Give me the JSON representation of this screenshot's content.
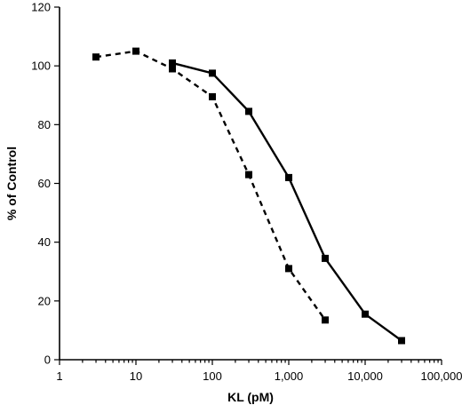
{
  "chart_data": {
    "type": "line",
    "xlabel": "KL (pM)",
    "ylabel": "% of Control",
    "x_scale": "log",
    "xlim": [
      1,
      100000
    ],
    "ylim": [
      0,
      120
    ],
    "x_tick_values": [
      1,
      10,
      100,
      1000,
      10000,
      100000
    ],
    "x_tick_labels": [
      "1",
      "10",
      "100",
      "1,000",
      "10,000",
      "100,000"
    ],
    "y_tick_values": [
      0,
      20,
      40,
      60,
      80,
      100,
      120
    ],
    "y_tick_labels": [
      "0",
      "20",
      "40",
      "60",
      "80",
      "100",
      "120"
    ],
    "grid": false,
    "legend": "none",
    "series": [
      {
        "line_style": "solid",
        "marker": "square",
        "x": [
          30,
          100,
          300,
          1000,
          3000,
          10000,
          30000
        ],
        "y": [
          101,
          97.5,
          84.5,
          62,
          34.5,
          15.5,
          6.5
        ]
      },
      {
        "line_style": "dashed",
        "marker": "square",
        "x": [
          3,
          10,
          30,
          100,
          300,
          1000,
          3000
        ],
        "y": [
          103,
          105,
          99,
          89.5,
          63,
          31,
          13.5
        ]
      }
    ]
  }
}
